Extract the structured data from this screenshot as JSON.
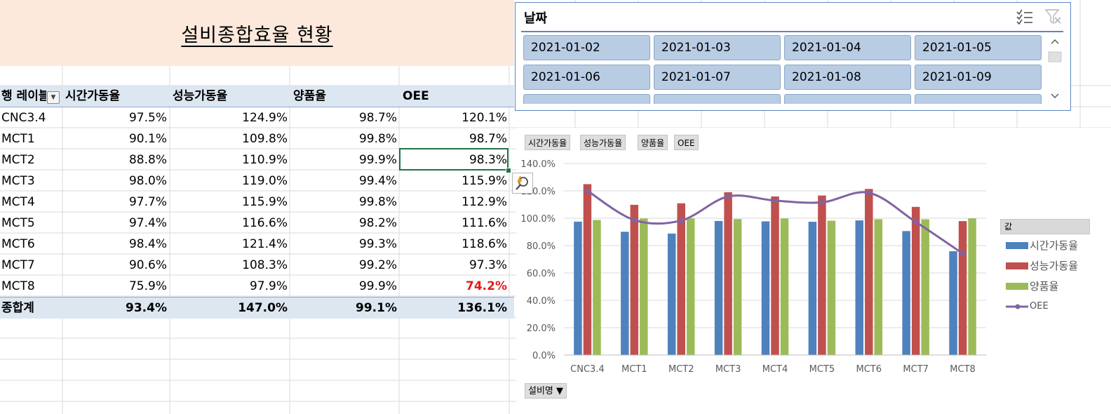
{
  "sheet": {
    "title": "설비종합효율 현황"
  },
  "pivot": {
    "headers": [
      "행 레이블",
      "시간가동율",
      "성능가동율",
      "양품율",
      "OEE"
    ],
    "rows": [
      [
        "CNC3.4",
        "97.5%",
        "124.9%",
        "98.7%",
        "120.1%"
      ],
      [
        "MCT1",
        "90.1%",
        "109.8%",
        "99.8%",
        "98.7%"
      ],
      [
        "MCT2",
        "88.8%",
        "110.9%",
        "99.9%",
        "98.3%"
      ],
      [
        "MCT3",
        "98.0%",
        "119.0%",
        "99.4%",
        "115.9%"
      ],
      [
        "MCT4",
        "97.7%",
        "115.9%",
        "99.8%",
        "112.9%"
      ],
      [
        "MCT5",
        "97.4%",
        "116.6%",
        "98.2%",
        "111.6%"
      ],
      [
        "MCT6",
        "98.4%",
        "121.4%",
        "99.3%",
        "118.6%"
      ],
      [
        "MCT7",
        "90.6%",
        "108.3%",
        "99.2%",
        "97.3%"
      ],
      [
        "MCT8",
        "75.9%",
        "97.9%",
        "99.9%",
        "74.2%"
      ]
    ],
    "total": [
      "종합계",
      "93.4%",
      "147.0%",
      "99.1%",
      "136.1%"
    ],
    "highlight_color": "#e11b1b",
    "selected_cell": "MCT2 / OEE"
  },
  "slicer": {
    "title": "날짜",
    "items": [
      "2021-01-02",
      "2021-01-03",
      "2021-01-04",
      "2021-01-05",
      "2021-01-06",
      "2021-01-07",
      "2021-01-08",
      "2021-01-09"
    ],
    "icons": [
      "multi-select-icon",
      "clear-filter-icon"
    ],
    "accent": "#5b86c4",
    "button_color": "#b8cce4"
  },
  "chart_data": {
    "type": "bar",
    "categories": [
      "CNC3.4",
      "MCT1",
      "MCT2",
      "MCT3",
      "MCT4",
      "MCT5",
      "MCT6",
      "MCT7",
      "MCT8"
    ],
    "series": [
      {
        "name": "시간가동율",
        "type": "bar",
        "color": "#4f81bd",
        "values": [
          97.5,
          90.1,
          88.8,
          98.0,
          97.7,
          97.4,
          98.4,
          90.6,
          75.9
        ]
      },
      {
        "name": "성능가동율",
        "type": "bar",
        "color": "#c0504d",
        "values": [
          124.9,
          109.8,
          110.9,
          119.0,
          115.9,
          116.6,
          121.4,
          108.3,
          97.9
        ]
      },
      {
        "name": "양품율",
        "type": "bar",
        "color": "#9bbb59",
        "values": [
          98.7,
          99.8,
          99.9,
          99.4,
          99.8,
          98.2,
          99.3,
          99.2,
          99.9
        ]
      },
      {
        "name": "OEE",
        "type": "line",
        "smooth": true,
        "color": "#8064a2",
        "values": [
          120.1,
          98.7,
          98.3,
          115.9,
          112.9,
          111.6,
          118.6,
          97.3,
          74.2
        ]
      }
    ],
    "y_ticks": [
      "0.0%",
      "20.0%",
      "40.0%",
      "60.0%",
      "80.0%",
      "100.0%",
      "120.0%",
      "140.0%"
    ],
    "ylim": [
      0,
      140
    ],
    "grid": true,
    "legend_title": "값",
    "legend_position": "right",
    "value_field_buttons": [
      "시간가동율",
      "성능가동율",
      "양품율",
      "OEE"
    ],
    "axis_field_button": "설비명 ▼"
  }
}
